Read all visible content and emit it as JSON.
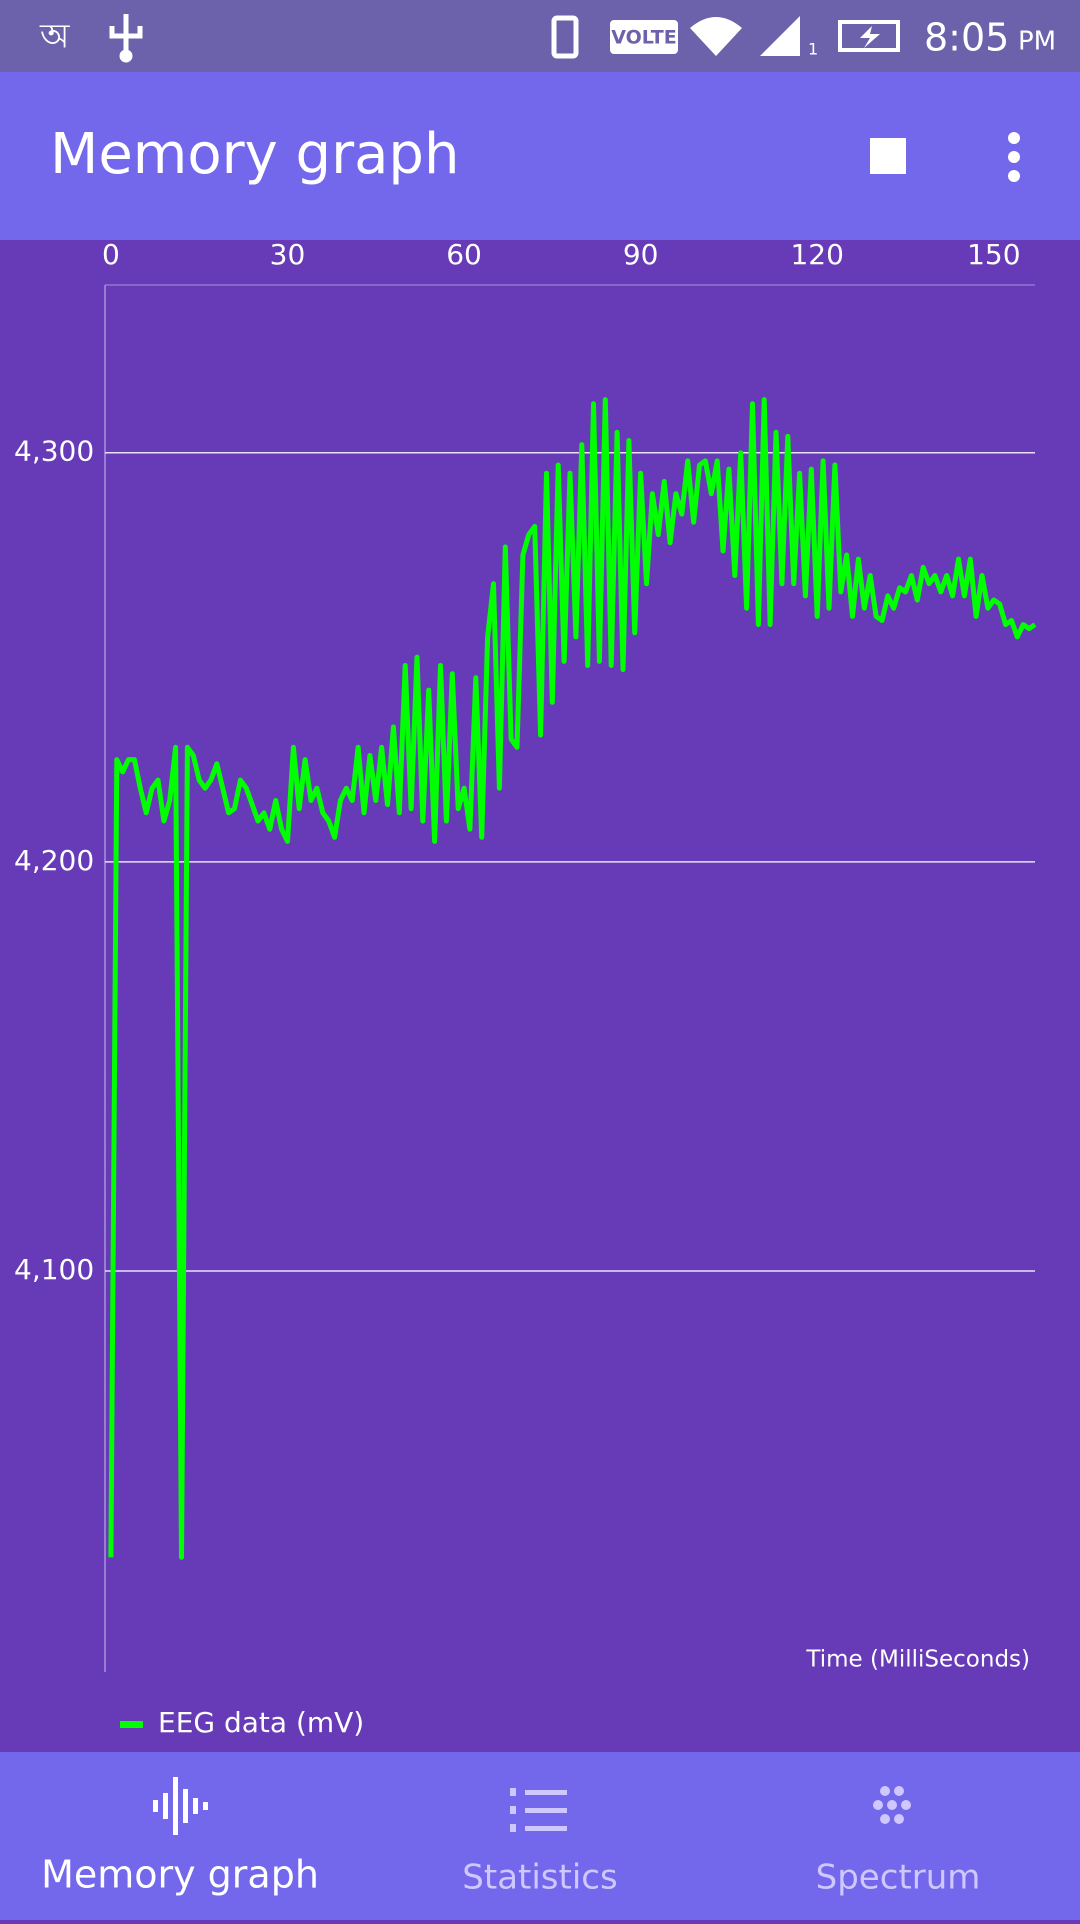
{
  "status_bar": {
    "left_glyph": "অ",
    "network": "VOLTE",
    "sim": "1",
    "time": "8:05",
    "ampm": "PM"
  },
  "app_bar": {
    "title": "Memory graph"
  },
  "chart_data": {
    "type": "line",
    "xlabel": "Time (MilliSeconds)",
    "x": [
      0,
      1,
      2,
      3,
      4,
      5,
      6,
      7,
      8,
      9,
      10,
      11,
      12,
      13,
      14,
      15,
      16,
      17,
      18,
      19,
      20,
      21,
      22,
      23,
      24,
      25,
      26,
      27,
      28,
      29,
      30,
      31,
      32,
      33,
      34,
      35,
      36,
      37,
      38,
      39,
      40,
      41,
      42,
      43,
      44,
      45,
      46,
      47,
      48,
      49,
      50,
      51,
      52,
      53,
      54,
      55,
      56,
      57,
      58,
      59,
      60,
      61,
      62,
      63,
      64,
      65,
      66,
      67,
      68,
      69,
      70,
      71,
      72,
      73,
      74,
      75,
      76,
      77,
      78,
      79,
      80,
      81,
      82,
      83,
      84,
      85,
      86,
      87,
      88,
      89,
      90,
      91,
      92,
      93,
      94,
      95,
      96,
      97,
      98,
      99,
      100,
      101,
      102,
      103,
      104,
      105,
      106,
      107,
      108,
      109,
      110,
      111,
      112,
      113,
      114,
      115,
      116,
      117,
      118,
      119,
      120,
      121,
      122,
      123,
      124,
      125,
      126,
      127,
      128,
      129,
      130,
      131,
      132,
      133,
      134,
      135,
      136,
      137,
      138,
      139,
      140,
      141,
      142,
      143,
      144,
      145,
      146,
      147,
      148,
      149,
      150,
      151,
      152,
      153,
      154,
      155,
      156,
      157
    ],
    "series": [
      {
        "name": "EEG data (mV)",
        "color": "#00ff00",
        "values": [
          4030,
          4225,
          4222,
          4225,
          4225,
          4218,
          4212,
          4218,
          4220,
          4210,
          4215,
          4228,
          4030,
          4228,
          4226,
          4220,
          4218,
          4220,
          4224,
          4218,
          4212,
          4213,
          4220,
          4218,
          4214,
          4210,
          4212,
          4208,
          4215,
          4208,
          4205,
          4228,
          4213,
          4225,
          4215,
          4218,
          4212,
          4210,
          4206,
          4215,
          4218,
          4215,
          4228,
          4212,
          4226,
          4215,
          4228,
          4214,
          4233,
          4212,
          4248,
          4213,
          4250,
          4210,
          4242,
          4205,
          4248,
          4210,
          4246,
          4213,
          4218,
          4208,
          4245,
          4206,
          4255,
          4268,
          4218,
          4277,
          4230,
          4228,
          4275,
          4280,
          4282,
          4231,
          4295,
          4239,
          4297,
          4249,
          4295,
          4255,
          4302,
          4248,
          4312,
          4249,
          4313,
          4248,
          4305,
          4247,
          4303,
          4256,
          4295,
          4268,
          4290,
          4280,
          4293,
          4278,
          4290,
          4285,
          4298,
          4283,
          4297,
          4298,
          4290,
          4298,
          4276,
          4296,
          4270,
          4300,
          4262,
          4312,
          4258,
          4313,
          4258,
          4305,
          4268,
          4304,
          4268,
          4295,
          4265,
          4296,
          4260,
          4298,
          4262,
          4297,
          4266,
          4275,
          4260,
          4274,
          4262,
          4270,
          4260,
          4259,
          4265,
          4262,
          4267,
          4266,
          4270,
          4264,
          4272,
          4268,
          4270,
          4266,
          4270,
          4265,
          4274,
          4265,
          4274,
          4260,
          4270,
          4262,
          4264,
          4263,
          4258,
          4259,
          4255,
          4258,
          4257,
          4258
        ]
      }
    ],
    "xlim": [
      -1,
      157
    ],
    "ylim": [
      4002,
      4341
    ],
    "xticks": [
      0,
      30,
      60,
      90,
      120,
      150
    ],
    "yticks": [
      {
        "value": 4100,
        "label": "4,100"
      },
      {
        "value": 4200,
        "label": "4,200"
      },
      {
        "value": 4300,
        "label": "4,300"
      }
    ],
    "grid": true,
    "legend": "bottom-left"
  },
  "bottom_nav": {
    "items": [
      "Memory graph",
      "Statistics",
      "Spectrum"
    ]
  }
}
